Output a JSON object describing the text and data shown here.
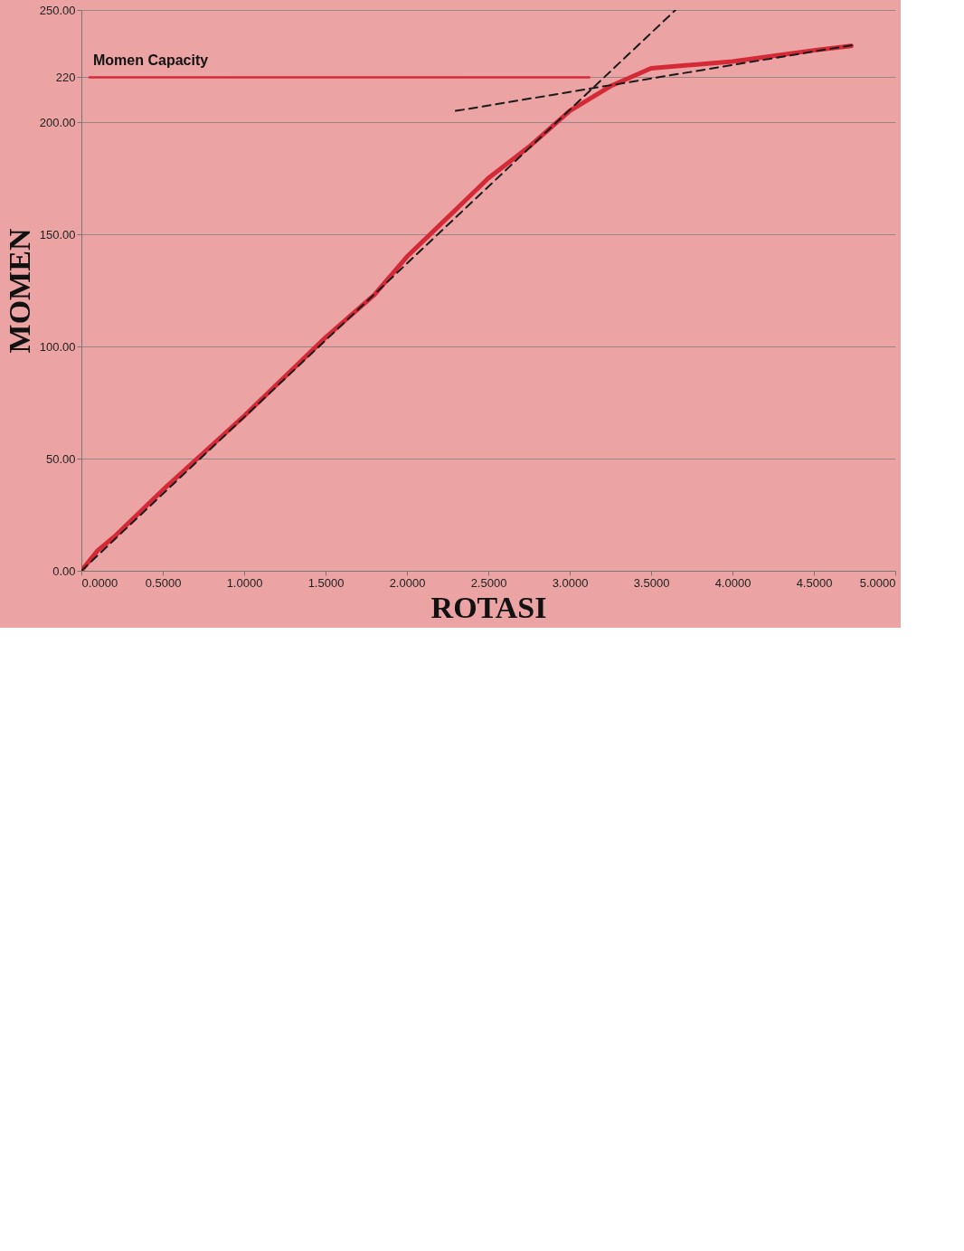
{
  "chart_data": {
    "type": "line",
    "xlabel": "ROTASI",
    "ylabel": "MOMEN",
    "xlim": [
      0,
      5
    ],
    "ylim": [
      0,
      250
    ],
    "xticks": [
      {
        "value": 0,
        "label": "0.0000"
      },
      {
        "value": 0.5,
        "label": "0.5000"
      },
      {
        "value": 1,
        "label": "1.0000"
      },
      {
        "value": 1.5,
        "label": "1.5000"
      },
      {
        "value": 2,
        "label": "2.0000"
      },
      {
        "value": 2.5,
        "label": "2.5000"
      },
      {
        "value": 3,
        "label": "3.0000"
      },
      {
        "value": 3.5,
        "label": "3.5000"
      },
      {
        "value": 4,
        "label": "4.0000"
      },
      {
        "value": 4.5,
        "label": "4.5000"
      },
      {
        "value": 5,
        "label": "5.0000"
      }
    ],
    "yticks": [
      {
        "value": 0,
        "label": "0.00"
      },
      {
        "value": 50,
        "label": "50.00"
      },
      {
        "value": 100,
        "label": "100.00"
      },
      {
        "value": 150,
        "label": "150.00"
      },
      {
        "value": 200,
        "label": "200.00"
      },
      220,
      {
        "value": 250,
        "label": "250.00"
      }
    ],
    "grid": "y",
    "marker": "none",
    "series": [
      {
        "color": "#d42a38",
        "line_style": "solid",
        "x": [
          0,
          0.1,
          0.2,
          0.5,
          1.0,
          1.5,
          1.8,
          2.0,
          2.5,
          2.75,
          3.0,
          3.25,
          3.5,
          4.0,
          4.5,
          4.73
        ],
        "values": [
          0,
          9,
          15,
          36,
          69,
          104,
          123,
          140,
          175,
          189,
          205,
          216,
          224,
          227,
          232,
          234
        ]
      },
      {
        "color": "#1a1a1a",
        "line_style": "dashed",
        "x": [
          0,
          3.65
        ],
        "values": [
          0,
          250
        ]
      },
      {
        "color": "#1a1a1a",
        "line_style": "dashed",
        "x": [
          2.3,
          4.75
        ],
        "values": [
          205,
          234.5
        ]
      },
      {
        "name": "Momen Capacity",
        "color": "#d42a38",
        "line_style": "solid",
        "x": [
          0.05,
          3.12
        ],
        "values": [
          220,
          220
        ]
      }
    ]
  }
}
